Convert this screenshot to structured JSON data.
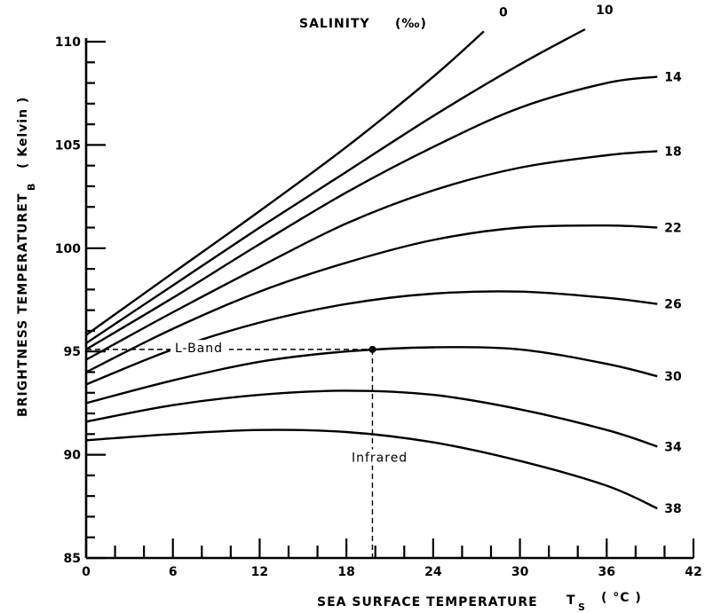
{
  "chart_data": {
    "type": "line",
    "title": "",
    "legend_title": "SALINITY",
    "legend_unit": "(‰)",
    "xlabel": "SEA SURFACE TEMPERATURE",
    "xlabel_symbol": "T",
    "xlabel_symbol_sub": "S",
    "xlabel_unit": "( °C )",
    "ylabel": "BRIGHTNESS TEMPERATURE",
    "ylabel_symbol": "T",
    "ylabel_symbol_sub": "B",
    "ylabel_unit": "( Kelvin )",
    "xlim": [
      0,
      42
    ],
    "ylim": [
      85,
      110
    ],
    "x_ticks": [
      0,
      6,
      12,
      18,
      24,
      30,
      36,
      42
    ],
    "x_tick_labels": [
      "0",
      "6",
      "12",
      "18",
      "24",
      "30",
      "36",
      "42"
    ],
    "y_ticks": [
      85,
      90,
      95,
      100,
      105,
      110
    ],
    "y_tick_labels": [
      "85",
      "90",
      "95",
      "100",
      "105",
      "110"
    ],
    "grid": false,
    "legend": "inline-right",
    "series": [
      {
        "name": "0",
        "x": [
          0,
          6,
          12,
          18,
          24,
          27.5
        ],
        "y": [
          95.8,
          98.8,
          101.8,
          104.9,
          108.3,
          110.5
        ]
      },
      {
        "name": "10",
        "x": [
          0,
          6,
          12,
          18,
          24,
          30,
          34.5
        ],
        "y": [
          95.4,
          98.2,
          101.0,
          103.7,
          106.4,
          108.9,
          110.6
        ]
      },
      {
        "name": "14",
        "x": [
          0,
          6,
          12,
          18,
          24,
          30,
          36,
          39.5
        ],
        "y": [
          95.1,
          97.6,
          100.2,
          102.7,
          104.9,
          106.8,
          108.0,
          108.3
        ]
      },
      {
        "name": "18",
        "x": [
          0,
          6,
          12,
          18,
          24,
          30,
          36,
          39.5
        ],
        "y": [
          94.6,
          96.9,
          99.1,
          101.2,
          102.8,
          103.9,
          104.5,
          104.7
        ]
      },
      {
        "name": "22",
        "x": [
          0,
          6,
          12,
          18,
          24,
          30,
          36,
          39.5
        ],
        "y": [
          94.0,
          96.1,
          97.9,
          99.3,
          100.4,
          101.0,
          101.1,
          101.0
        ]
      },
      {
        "name": "26",
        "x": [
          0,
          6,
          12,
          18,
          24,
          30,
          36,
          39.5
        ],
        "y": [
          93.4,
          95.1,
          96.4,
          97.3,
          97.8,
          97.9,
          97.6,
          97.3
        ]
      },
      {
        "name": "30",
        "x": [
          0,
          6,
          12,
          18,
          24,
          30,
          36,
          39.5
        ],
        "y": [
          92.5,
          93.6,
          94.5,
          95.0,
          95.2,
          95.1,
          94.4,
          93.8
        ]
      },
      {
        "name": "34",
        "x": [
          0,
          6,
          12,
          18,
          24,
          30,
          36,
          39.5
        ],
        "y": [
          91.6,
          92.4,
          92.9,
          93.1,
          92.9,
          92.2,
          91.2,
          90.4
        ]
      },
      {
        "name": "38",
        "x": [
          0,
          6,
          12,
          18,
          24,
          30,
          36,
          39.5
        ],
        "y": [
          90.7,
          91.0,
          91.2,
          91.1,
          90.6,
          89.7,
          88.5,
          87.4
        ]
      }
    ],
    "annotations": [
      {
        "text": "L-Band",
        "x": 7.8,
        "y": 95.0
      },
      {
        "text": "Infrared",
        "x": 20.3,
        "y": 89.7
      }
    ],
    "marker": {
      "x": 19.8,
      "y": 95.1
    }
  }
}
